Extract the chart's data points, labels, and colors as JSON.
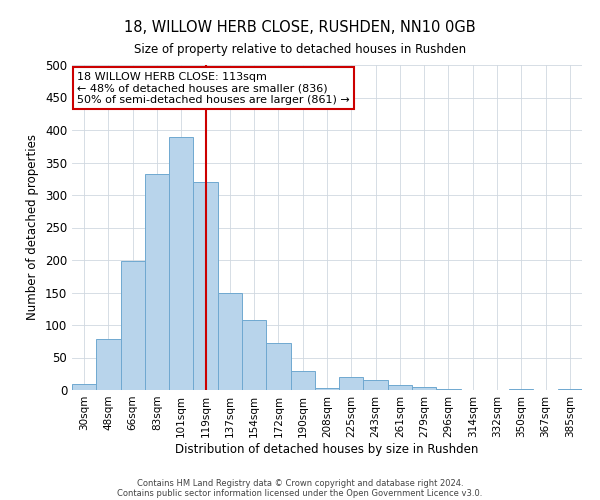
{
  "title": "18, WILLOW HERB CLOSE, RUSHDEN, NN10 0GB",
  "subtitle": "Size of property relative to detached houses in Rushden",
  "xlabel": "Distribution of detached houses by size in Rushden",
  "ylabel": "Number of detached properties",
  "footer_line1": "Contains HM Land Registry data © Crown copyright and database right 2024.",
  "footer_line2": "Contains public sector information licensed under the Open Government Licence v3.0.",
  "bin_labels": [
    "30sqm",
    "48sqm",
    "66sqm",
    "83sqm",
    "101sqm",
    "119sqm",
    "137sqm",
    "154sqm",
    "172sqm",
    "190sqm",
    "208sqm",
    "225sqm",
    "243sqm",
    "261sqm",
    "279sqm",
    "296sqm",
    "314sqm",
    "332sqm",
    "350sqm",
    "367sqm",
    "385sqm"
  ],
  "bar_values": [
    10,
    78,
    198,
    332,
    390,
    320,
    150,
    108,
    73,
    30,
    3,
    20,
    15,
    7,
    4,
    2,
    0,
    0,
    2,
    0,
    2
  ],
  "bar_color": "#b8d4eb",
  "bar_edge_color": "#6fa8d0",
  "vline_x_index": 5,
  "vline_color": "#cc0000",
  "ylim": [
    0,
    500
  ],
  "yticks": [
    0,
    50,
    100,
    150,
    200,
    250,
    300,
    350,
    400,
    450,
    500
  ],
  "annotation_title": "18 WILLOW HERB CLOSE: 113sqm",
  "annotation_line1": "← 48% of detached houses are smaller (836)",
  "annotation_line2": "50% of semi-detached houses are larger (861) →",
  "annotation_box_color": "#ffffff",
  "annotation_box_edge": "#cc0000"
}
